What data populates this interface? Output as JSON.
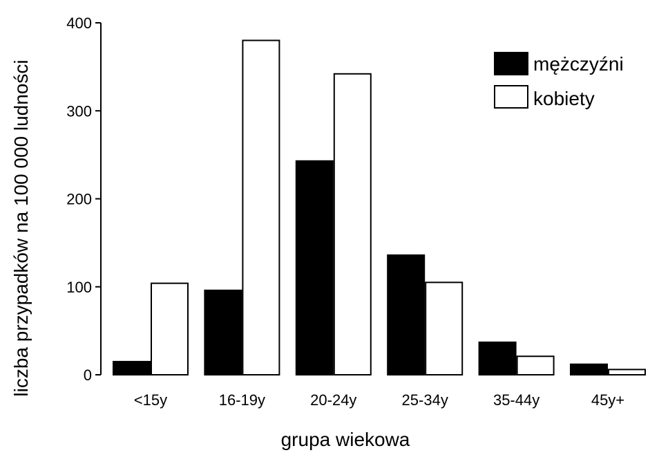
{
  "chart_data": {
    "type": "bar",
    "title": "",
    "xlabel": "grupa wiekowa",
    "ylabel": "liczba przypadków na 100 000 ludności",
    "categories": [
      "<15y",
      "16-19y",
      "20-24y",
      "25-34y",
      "35-44y",
      "45y+"
    ],
    "series": [
      {
        "name": "mężczyźni",
        "values": [
          15,
          96,
          243,
          136,
          37,
          12
        ],
        "color": "#000000"
      },
      {
        "name": "kobiety",
        "values": [
          104,
          380,
          342,
          105,
          21,
          6
        ],
        "color": "#ffffff"
      }
    ],
    "ylim": [
      0,
      400
    ],
    "yticks": [
      0,
      100,
      200,
      300,
      400
    ],
    "grid": false,
    "legend_position": "top-right"
  }
}
